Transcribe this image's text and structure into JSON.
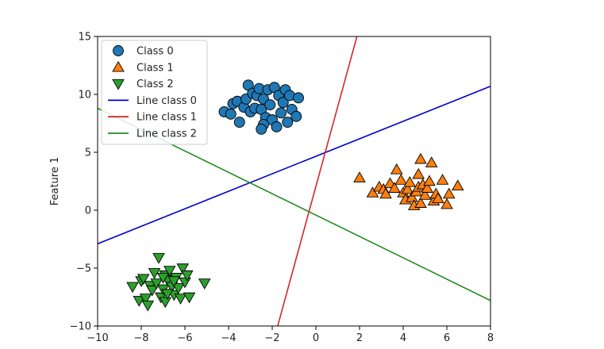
{
  "chart_data": {
    "type": "scatter",
    "xlim": [
      -10,
      8
    ],
    "ylim": [
      -10,
      15
    ],
    "x_ticks": [
      -10,
      -8,
      -6,
      -4,
      -2,
      0,
      2,
      4,
      6,
      8
    ],
    "x_tick_labels": [
      "−10",
      "−8",
      "−6",
      "−4",
      "−2",
      "0",
      "2",
      "4",
      "6",
      "8"
    ],
    "y_ticks": [
      -10,
      -5,
      0,
      5,
      10,
      15
    ],
    "y_tick_labels": [
      "−10",
      "−5",
      "0",
      "5",
      "10",
      "15"
    ],
    "ylabel": "Feature 1",
    "xlabel": "",
    "grid": false,
    "legend_position": "top-left",
    "series": [
      {
        "name": "Class 0",
        "kind": "points",
        "marker": "circle",
        "color": "#1f77b4",
        "points": [
          [
            -4.2,
            8.5
          ],
          [
            -3.9,
            8.3
          ],
          [
            -3.8,
            9.2
          ],
          [
            -3.6,
            9.4
          ],
          [
            -3.5,
            7.6
          ],
          [
            -3.3,
            8.9
          ],
          [
            -3.2,
            9.6
          ],
          [
            -3.1,
            10.8
          ],
          [
            -3.0,
            8.5
          ],
          [
            -2.9,
            10.1
          ],
          [
            -2.8,
            8.8
          ],
          [
            -2.7,
            9.9
          ],
          [
            -2.6,
            10.5
          ],
          [
            -2.5,
            8.7
          ],
          [
            -2.4,
            9.6
          ],
          [
            -2.3,
            8.0
          ],
          [
            -2.2,
            10.4
          ],
          [
            -2.1,
            9.1
          ],
          [
            -2.0,
            7.8
          ],
          [
            -1.9,
            10.6
          ],
          [
            -1.8,
            7.2
          ],
          [
            -1.7,
            9.9
          ],
          [
            -1.6,
            8.4
          ],
          [
            -1.5,
            9.3
          ],
          [
            -1.4,
            10.4
          ],
          [
            -1.3,
            7.6
          ],
          [
            -1.2,
            9.9
          ],
          [
            -1.1,
            8.7
          ],
          [
            -0.9,
            8.1
          ],
          [
            -0.8,
            9.7
          ],
          [
            -2.4,
            7.4
          ],
          [
            -2.5,
            7.0
          ]
        ]
      },
      {
        "name": "Class 1",
        "kind": "points",
        "marker": "triangle-up",
        "color": "#ff7f0e",
        "points": [
          [
            2.0,
            2.8
          ],
          [
            2.6,
            1.5
          ],
          [
            2.9,
            2.0
          ],
          [
            3.1,
            1.8
          ],
          [
            3.2,
            1.4
          ],
          [
            3.4,
            2.3
          ],
          [
            3.6,
            1.9
          ],
          [
            3.7,
            3.5
          ],
          [
            3.9,
            2.6
          ],
          [
            4.0,
            1.5
          ],
          [
            4.1,
            0.9
          ],
          [
            4.2,
            1.8
          ],
          [
            4.3,
            2.4
          ],
          [
            4.4,
            1.1
          ],
          [
            4.5,
            0.4
          ],
          [
            4.6,
            1.6
          ],
          [
            4.7,
            2.0
          ],
          [
            4.8,
            0.6
          ],
          [
            4.7,
            3.1
          ],
          [
            4.8,
            4.4
          ],
          [
            4.9,
            2.2
          ],
          [
            5.0,
            1.3
          ],
          [
            5.1,
            1.9
          ],
          [
            5.2,
            2.5
          ],
          [
            5.3,
            4.1
          ],
          [
            5.4,
            0.8
          ],
          [
            5.5,
            1.4
          ],
          [
            5.6,
            1.0
          ],
          [
            5.8,
            2.6
          ],
          [
            6.0,
            0.5
          ],
          [
            6.1,
            1.4
          ],
          [
            6.5,
            2.1
          ]
        ]
      },
      {
        "name": "Class 2",
        "kind": "points",
        "marker": "triangle-down",
        "color": "#2ca02c",
        "points": [
          [
            -8.4,
            -6.6
          ],
          [
            -8.1,
            -7.8
          ],
          [
            -8.0,
            -6.1
          ],
          [
            -7.9,
            -5.9
          ],
          [
            -7.8,
            -7.6
          ],
          [
            -7.7,
            -8.2
          ],
          [
            -7.6,
            -6.5
          ],
          [
            -7.5,
            -6.9
          ],
          [
            -7.4,
            -5.4
          ],
          [
            -7.3,
            -6.3
          ],
          [
            -7.2,
            -4.1
          ],
          [
            -7.1,
            -7.5
          ],
          [
            -7.0,
            -6.8
          ],
          [
            -6.9,
            -5.6
          ],
          [
            -6.9,
            -7.9
          ],
          [
            -6.8,
            -6.0
          ],
          [
            -6.7,
            -5.2
          ],
          [
            -6.6,
            -6.6
          ],
          [
            -6.5,
            -7.3
          ],
          [
            -6.4,
            -5.8
          ],
          [
            -6.3,
            -6.7
          ],
          [
            -6.2,
            -7.6
          ],
          [
            -6.1,
            -5.0
          ],
          [
            -6.0,
            -6.2
          ],
          [
            -5.9,
            -5.6
          ],
          [
            -5.8,
            -7.5
          ],
          [
            -5.1,
            -6.3
          ],
          [
            -6.8,
            -7.2
          ],
          [
            -6.5,
            -6.1
          ],
          [
            -7.0,
            -5.8
          ]
        ]
      },
      {
        "name": "Line class 0",
        "kind": "line",
        "color": "#0000cc",
        "x": [
          -10,
          8
        ],
        "y": [
          -2.9,
          10.7
        ]
      },
      {
        "name": "Line class 1",
        "kind": "line",
        "color": "#d62728",
        "x": [
          -1.75,
          1.88
        ],
        "y": [
          -10,
          15
        ]
      },
      {
        "name": "Line class 2",
        "kind": "line",
        "color": "#228b22",
        "x": [
          -10,
          8
        ],
        "y": [
          8.8,
          -7.8
        ]
      }
    ]
  }
}
